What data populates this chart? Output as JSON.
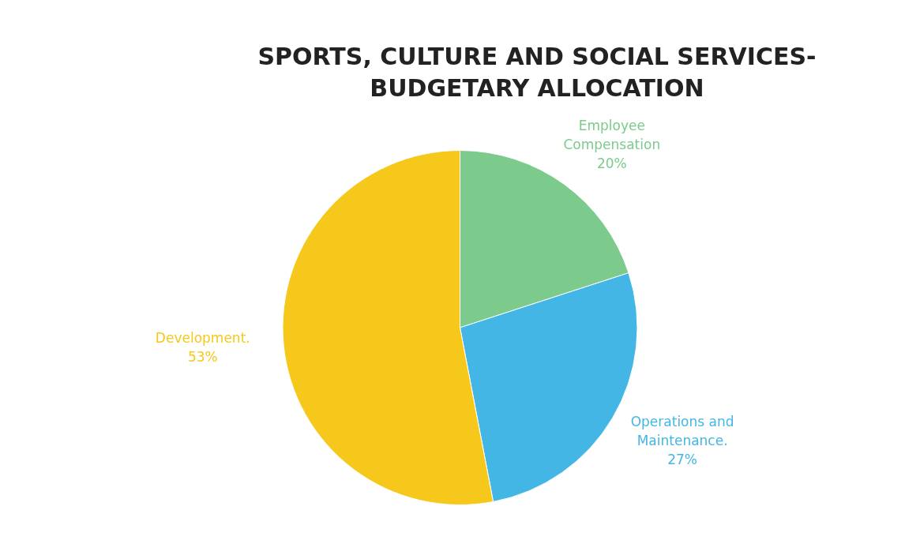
{
  "chart_data": {
    "type": "pie",
    "title": "SPORTS, CULTURE AND SOCIAL SERVICES-BUDGETARY ALLOCATION",
    "categories": [
      "Employee Compensation",
      "Operations and Maintenance.",
      "Development."
    ],
    "values": [
      20,
      27,
      53
    ],
    "colors": [
      "#7ccb8c",
      "#44b6e6",
      "#f6c81c"
    ],
    "value_labels": [
      "20%",
      "27%",
      "53%"
    ],
    "legend": false
  }
}
